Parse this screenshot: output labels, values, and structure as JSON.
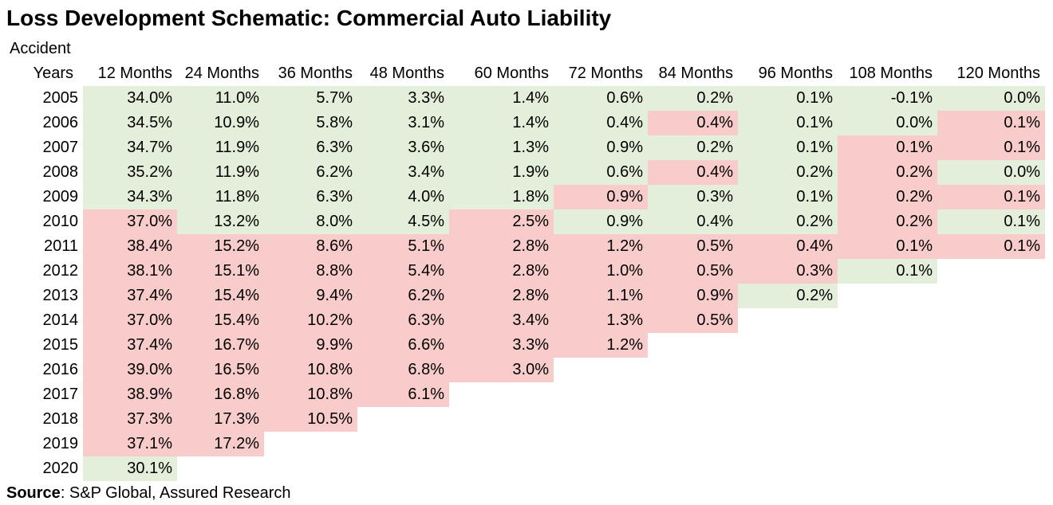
{
  "colors": {
    "green_fill": "#e3efda",
    "red_fill": "#f8cccb",
    "text": "#000000",
    "background": "#ffffff"
  },
  "source": {
    "label": "Source",
    "text": ": S&P Global, Assured Research"
  },
  "chart_data": {
    "type": "heatmap",
    "title": "Loss Development Schematic: Commercial Auto Liability",
    "corner": {
      "line1": "Accident",
      "line2": "Years"
    },
    "columns": [
      "12 Months",
      "24 Months",
      "36 Months",
      "48 Months",
      "60 Months",
      "72 Months",
      "84 Months",
      "96 Months",
      "108 Months",
      "120 Months"
    ],
    "unit": "%",
    "value_format": "one_decimal_percent",
    "cell_color_key": {
      "g": "green fill #e3efda",
      "r": "red fill #f8cccb"
    },
    "rows": [
      {
        "year": "2005",
        "values": [
          34.0,
          11.0,
          5.7,
          3.3,
          1.4,
          0.6,
          0.2,
          0.1,
          -0.1,
          0.0
        ],
        "colors": [
          "g",
          "g",
          "g",
          "g",
          "g",
          "g",
          "g",
          "g",
          "g",
          "g"
        ]
      },
      {
        "year": "2006",
        "values": [
          34.5,
          10.9,
          5.8,
          3.1,
          1.4,
          0.4,
          0.4,
          0.1,
          0.0,
          0.1
        ],
        "colors": [
          "g",
          "g",
          "g",
          "g",
          "g",
          "g",
          "r",
          "g",
          "g",
          "r"
        ]
      },
      {
        "year": "2007",
        "values": [
          34.7,
          11.9,
          6.3,
          3.6,
          1.3,
          0.9,
          0.2,
          0.1,
          0.1,
          0.1
        ],
        "colors": [
          "g",
          "g",
          "g",
          "g",
          "g",
          "g",
          "g",
          "g",
          "r",
          "r"
        ]
      },
      {
        "year": "2008",
        "values": [
          35.2,
          11.9,
          6.2,
          3.4,
          1.9,
          0.6,
          0.4,
          0.2,
          0.2,
          0.0
        ],
        "colors": [
          "g",
          "g",
          "g",
          "g",
          "g",
          "g",
          "r",
          "g",
          "r",
          "g"
        ]
      },
      {
        "year": "2009",
        "values": [
          34.3,
          11.8,
          6.3,
          4.0,
          1.8,
          0.9,
          0.3,
          0.1,
          0.2,
          0.1
        ],
        "colors": [
          "g",
          "g",
          "g",
          "g",
          "g",
          "r",
          "g",
          "g",
          "r",
          "r"
        ]
      },
      {
        "year": "2010",
        "values": [
          37.0,
          13.2,
          8.0,
          4.5,
          2.5,
          0.9,
          0.4,
          0.2,
          0.2,
          0.1
        ],
        "colors": [
          "r",
          "g",
          "g",
          "g",
          "r",
          "g",
          "g",
          "g",
          "r",
          "g"
        ]
      },
      {
        "year": "2011",
        "values": [
          38.4,
          15.2,
          8.6,
          5.1,
          2.8,
          1.2,
          0.5,
          0.4,
          0.1,
          0.1
        ],
        "colors": [
          "r",
          "r",
          "r",
          "r",
          "r",
          "r",
          "r",
          "r",
          "r",
          "r"
        ]
      },
      {
        "year": "2012",
        "values": [
          38.1,
          15.1,
          8.8,
          5.4,
          2.8,
          1.0,
          0.5,
          0.3,
          0.1
        ],
        "colors": [
          "r",
          "r",
          "r",
          "r",
          "r",
          "r",
          "r",
          "r",
          "g"
        ]
      },
      {
        "year": "2013",
        "values": [
          37.4,
          15.4,
          9.4,
          6.2,
          2.8,
          1.1,
          0.9,
          0.2
        ],
        "colors": [
          "r",
          "r",
          "r",
          "r",
          "r",
          "r",
          "r",
          "g"
        ]
      },
      {
        "year": "2014",
        "values": [
          37.0,
          15.4,
          10.2,
          6.3,
          3.4,
          1.3,
          0.5
        ],
        "colors": [
          "r",
          "r",
          "r",
          "r",
          "r",
          "r",
          "r"
        ]
      },
      {
        "year": "2015",
        "values": [
          37.4,
          16.7,
          9.9,
          6.6,
          3.3,
          1.2
        ],
        "colors": [
          "r",
          "r",
          "r",
          "r",
          "r",
          "r"
        ]
      },
      {
        "year": "2016",
        "values": [
          39.0,
          16.5,
          10.8,
          6.8,
          3.0
        ],
        "colors": [
          "r",
          "r",
          "r",
          "r",
          "r"
        ]
      },
      {
        "year": "2017",
        "values": [
          38.9,
          16.8,
          10.8,
          6.1
        ],
        "colors": [
          "r",
          "r",
          "r",
          "r"
        ]
      },
      {
        "year": "2018",
        "values": [
          37.3,
          17.3,
          10.5
        ],
        "colors": [
          "r",
          "r",
          "r"
        ]
      },
      {
        "year": "2019",
        "values": [
          37.1,
          17.2
        ],
        "colors": [
          "r",
          "r"
        ]
      },
      {
        "year": "2020",
        "values": [
          30.1
        ],
        "colors": [
          "g"
        ]
      }
    ]
  }
}
